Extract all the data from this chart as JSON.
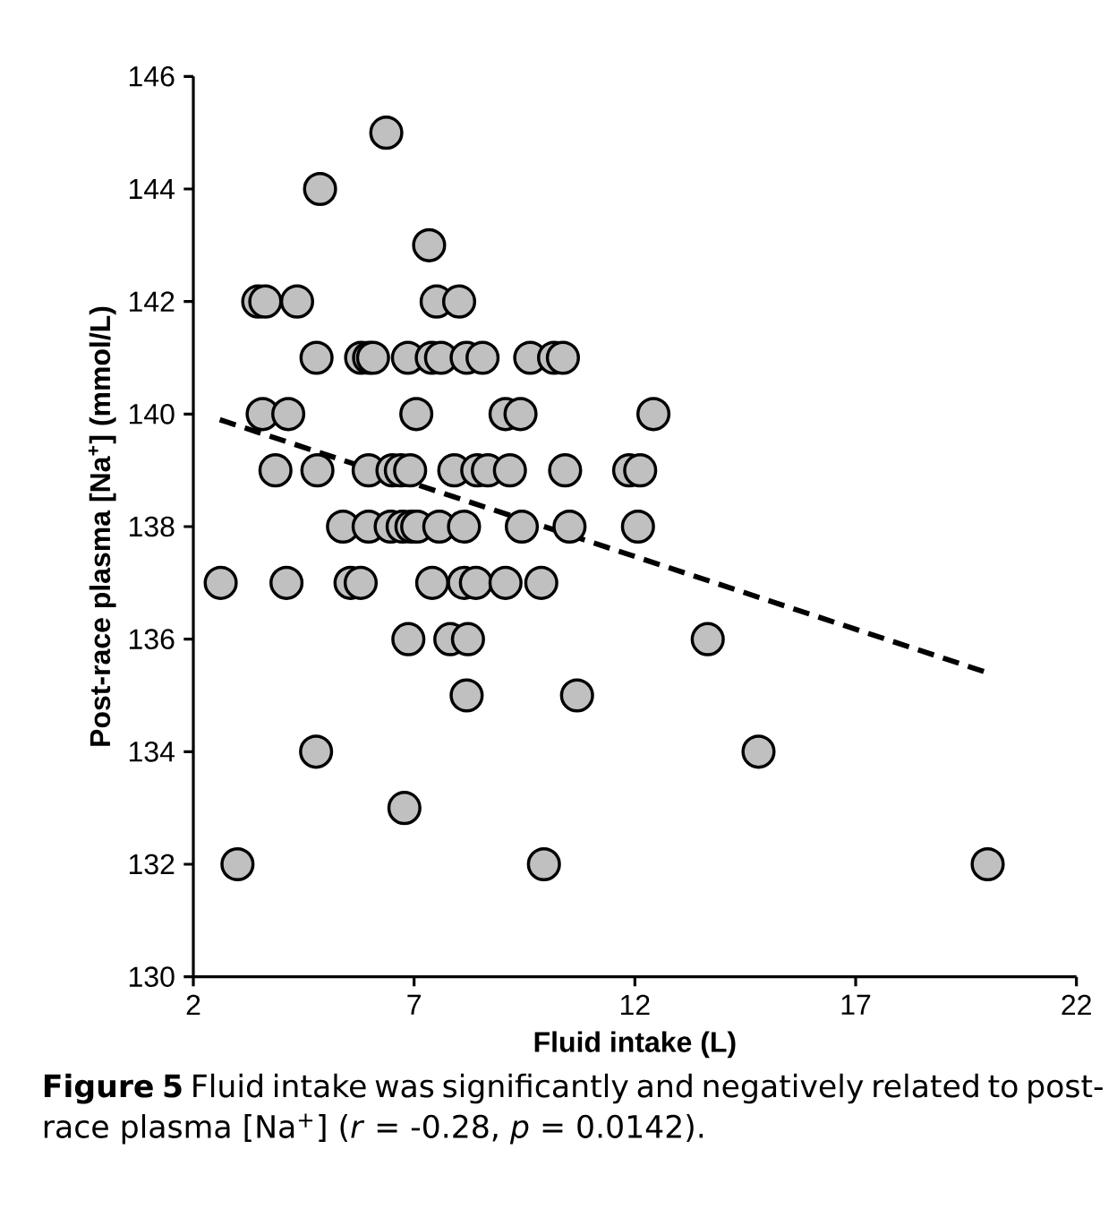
{
  "chart_data": {
    "type": "scatter",
    "xlabel": "Fluid intake (L)",
    "ylabel": "Post-race plasma [Na$^{+}$] (mmol/L)",
    "xlim": [
      2,
      22
    ],
    "xticks": [
      2,
      7,
      12,
      17,
      22
    ],
    "ylim": [
      130,
      146
    ],
    "yticks": [
      130,
      132,
      134,
      136,
      138,
      140,
      142,
      144,
      146
    ],
    "grid": false,
    "series": [
      {
        "color": "#c0c0c0",
        "marker": "circle",
        "x": [
          6.37,
          4.87,
          7.34,
          3.47,
          3.63,
          4.35,
          7.51,
          8.02,
          4.79,
          5.8,
          5.98,
          6.07,
          6.86,
          7.4,
          7.61,
          8.19,
          8.55,
          9.63,
          10.17,
          10.37,
          3.57,
          4.15,
          7.05,
          9.07,
          9.41,
          12.42,
          3.86,
          4.81,
          5.97,
          6.51,
          6.7,
          6.91,
          7.91,
          8.43,
          8.67,
          9.17,
          10.42,
          11.87,
          12.12,
          5.39,
          5.97,
          6.47,
          6.74,
          6.94,
          7.07,
          7.57,
          8.13,
          9.44,
          10.52,
          12.07,
          2.62,
          4.11,
          5.56,
          5.79,
          7.41,
          8.13,
          8.4,
          9.07,
          9.88,
          6.87,
          7.82,
          8.22,
          13.65,
          8.19,
          10.69,
          4.78,
          14.8,
          6.78,
          3.0,
          9.94,
          19.99
        ],
        "values": [
          145,
          144,
          143,
          142,
          142,
          142,
          142,
          142,
          141,
          141,
          141,
          141,
          141,
          141,
          141,
          141,
          141,
          141,
          141,
          141,
          140,
          140,
          140,
          140,
          140,
          140,
          139,
          139,
          139,
          139,
          139,
          139,
          139,
          139,
          139,
          139,
          139,
          139,
          139,
          138,
          138,
          138,
          138,
          138,
          138,
          138,
          138,
          138,
          138,
          138,
          137,
          137,
          137,
          137,
          137,
          137,
          137,
          137,
          137,
          136,
          136,
          136,
          136,
          135,
          135,
          134,
          134,
          133,
          132,
          132,
          132
        ]
      },
      {
        "type": "line",
        "color": "#000000",
        "line_style": "dashed",
        "marker": "none",
        "x": [
          2.6,
          20.0
        ],
        "values": [
          139.9,
          135.4
        ]
      }
    ],
    "annotations": [
      "**Figure 5** Fluid intake was significantly and negatively related to post-race plasma [Na$^{+}$] (*r* = -0.28, *p* = 0.0142)."
    ]
  }
}
